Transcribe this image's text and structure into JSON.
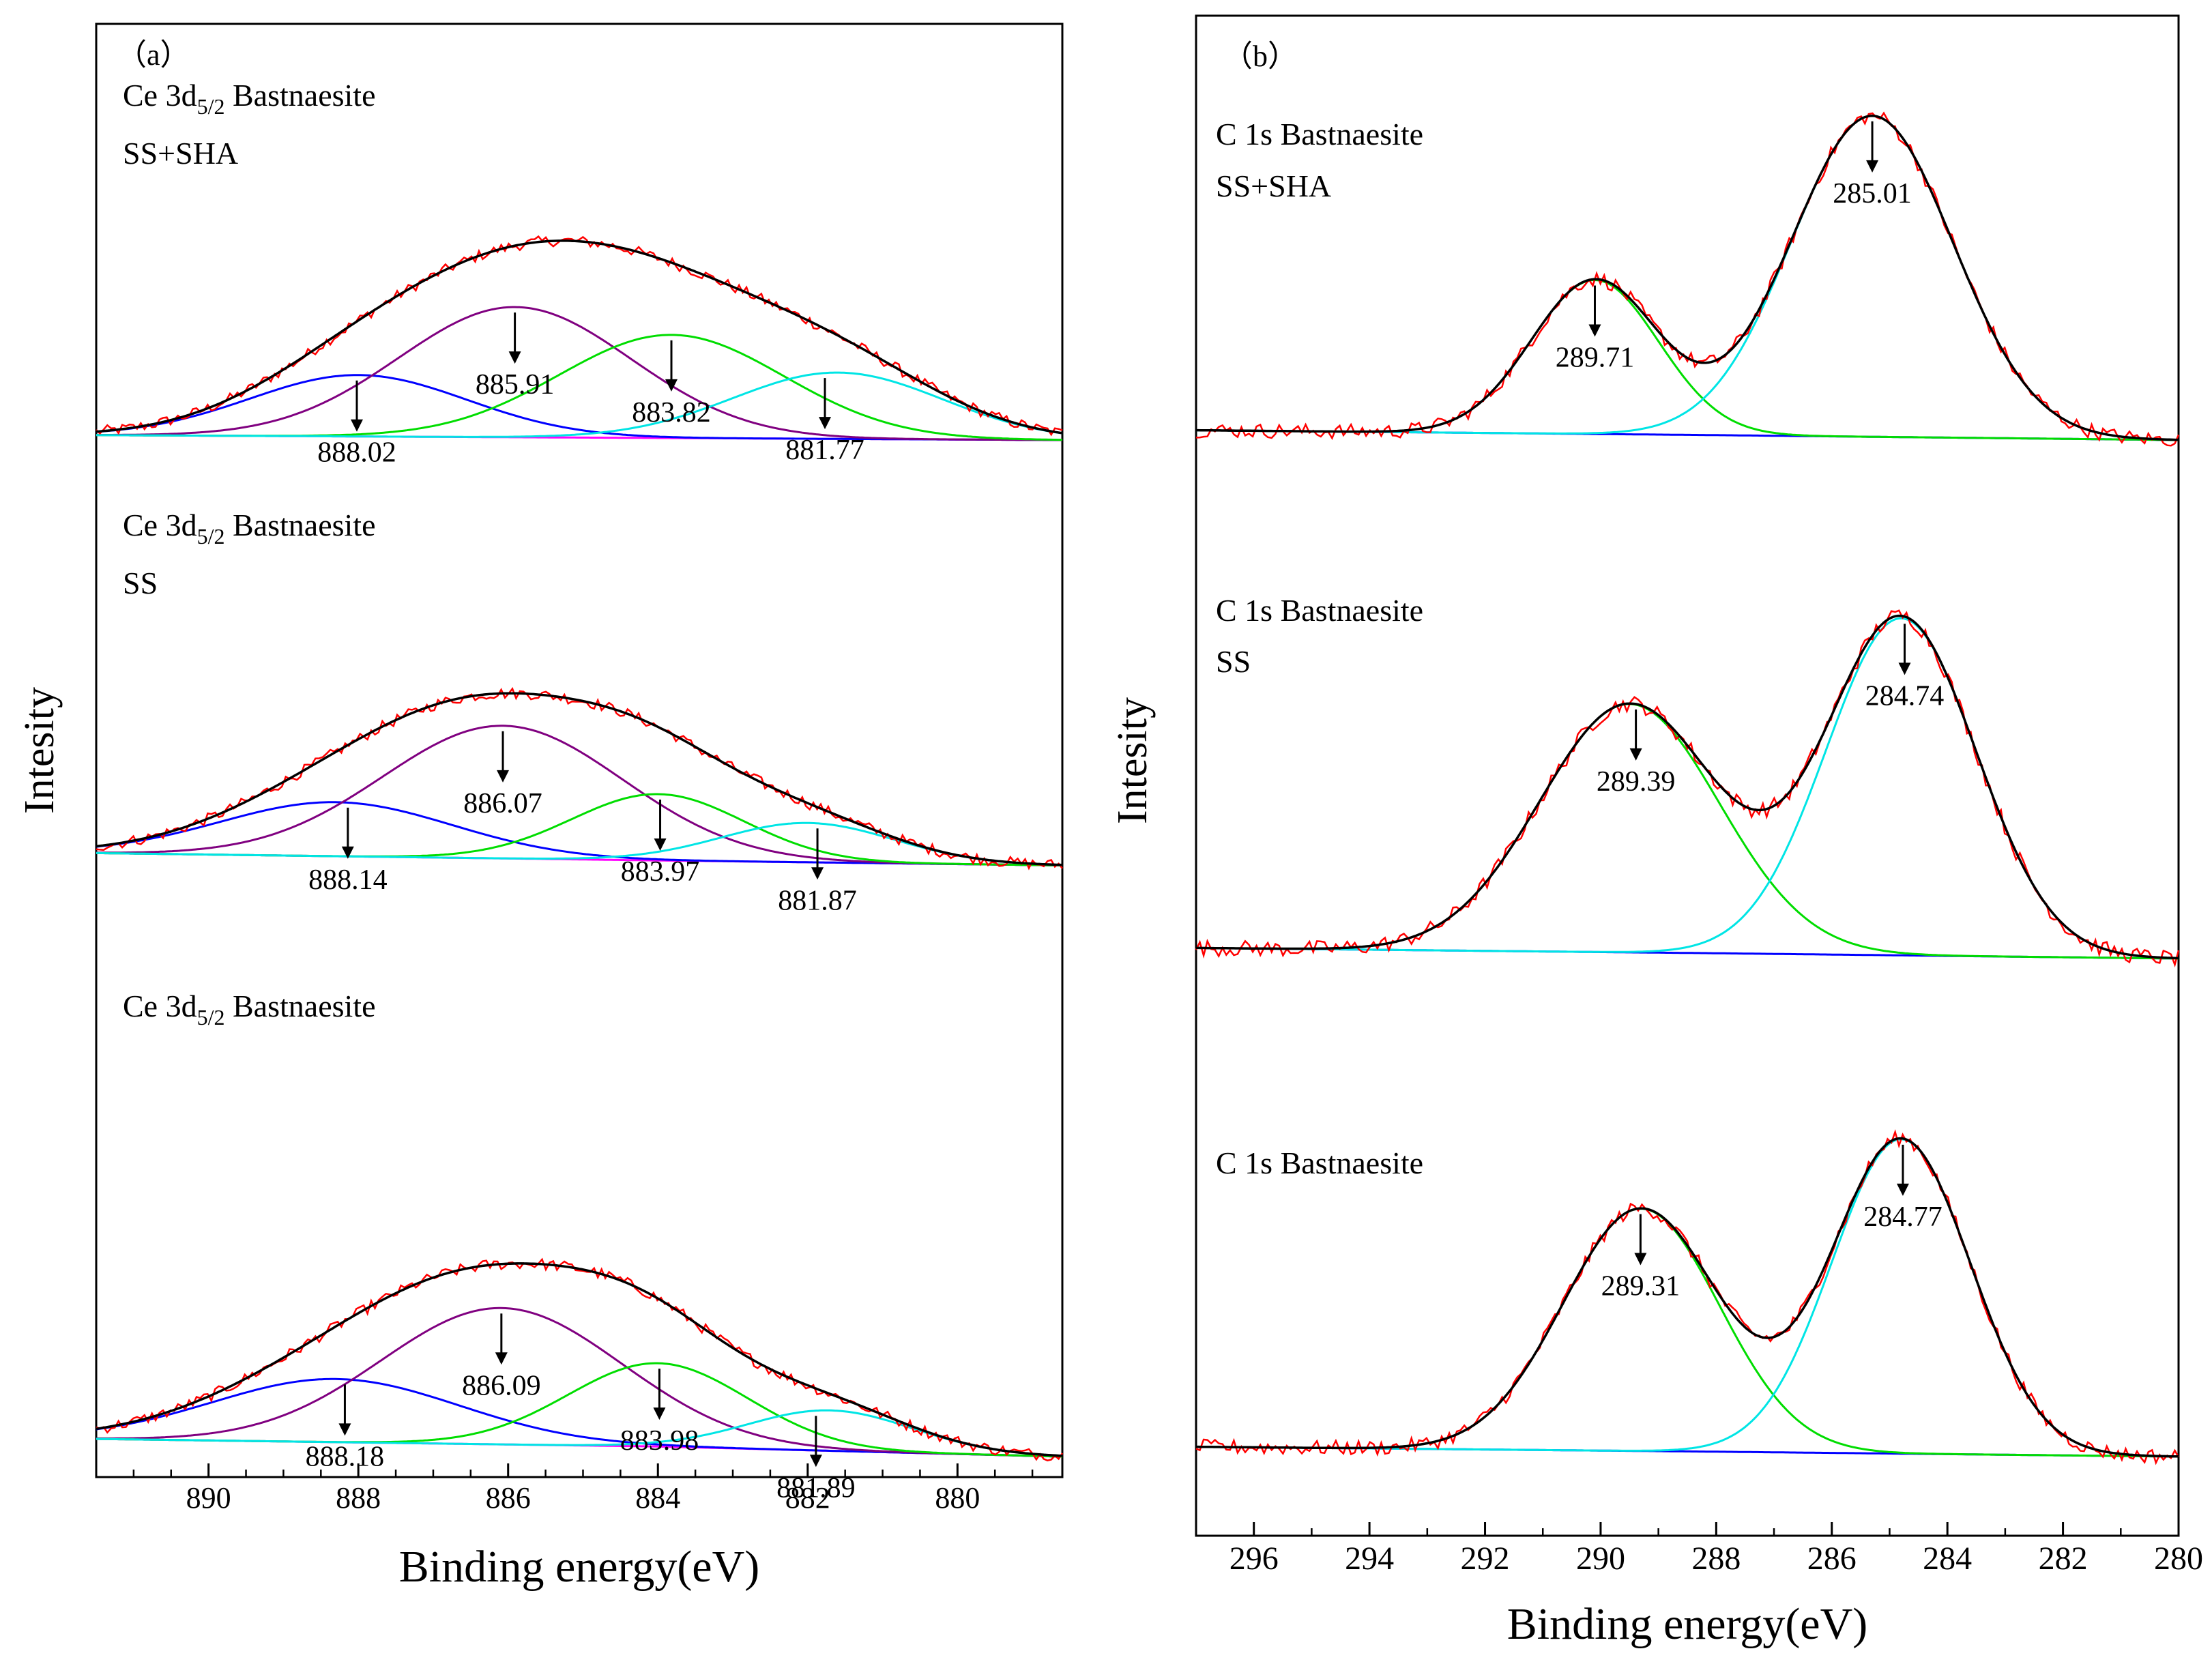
{
  "chart_data": [
    {
      "type": "line",
      "panel_label": "（a）",
      "xlabel": "Binding energy(eV)",
      "ylabel": "Intesity",
      "xlim": [
        891.5,
        878.6
      ],
      "x_reversed": true,
      "xticks": [
        890,
        888,
        886,
        884,
        882,
        880
      ],
      "minor_tick_step": 0.5,
      "grid": false,
      "colors": {
        "fit": "#000000",
        "data": "#ff0000",
        "c1": "#0000ff",
        "c2": "#800080",
        "c3": "#00dd00",
        "c4": "#00e5e5",
        "bg": "#ff00ff"
      },
      "subplots": [
        {
          "title_main": "Ce 3d",
          "title_sub": "5/2",
          "title_rest": " Bastnaesite",
          "title_line2": "SS+SHA",
          "baseline": [
            [
              891.5,
              0.02
            ],
            [
              885,
              0.01
            ],
            [
              878.6,
              0.0
            ]
          ],
          "components": [
            {
              "color": "c1",
              "center": 888.0,
              "height": 0.25,
              "sigma": 1.45
            },
            {
              "color": "c2",
              "center": 885.91,
              "height": 0.53,
              "sigma": 1.55
            },
            {
              "color": "c3",
              "center": 883.82,
              "height": 0.42,
              "sigma": 1.5
            },
            {
              "color": "c4",
              "center": 881.6,
              "height": 0.27,
              "sigma": 1.4
            }
          ],
          "annotations": [
            {
              "label": "888.02",
              "x": 888.02
            },
            {
              "label": "885.91",
              "x": 885.91
            },
            {
              "label": "883.82",
              "x": 883.82
            },
            {
              "label": "881.77",
              "x": 881.77
            }
          ]
        },
        {
          "title_main": "Ce 3d",
          "title_sub": "5/2",
          "title_rest": " Bastnaesite",
          "title_line2": "SS",
          "baseline": [
            [
              891.5,
              0.11
            ],
            [
              884,
              0.08
            ],
            [
              878.6,
              0.06
            ]
          ],
          "components": [
            {
              "color": "c1",
              "center": 888.3,
              "height": 0.22,
              "sigma": 1.55
            },
            {
              "color": "c2",
              "center": 886.07,
              "height": 0.54,
              "sigma": 1.6
            },
            {
              "color": "c3",
              "center": 884.0,
              "height": 0.27,
              "sigma": 1.15
            },
            {
              "color": "c4",
              "center": 882.0,
              "height": 0.16,
              "sigma": 1.15
            }
          ],
          "annotations": [
            {
              "label": "888.14",
              "x": 888.14
            },
            {
              "label": "886.07",
              "x": 886.07
            },
            {
              "label": "883.97",
              "x": 883.97
            },
            {
              "label": "881.87",
              "x": 881.87
            }
          ]
        },
        {
          "title_main": "Ce 3d",
          "title_sub": "5/2",
          "title_rest": " Bastnaesite",
          "title_line2": "",
          "baseline": [
            [
              891.5,
              0.07
            ],
            [
              884,
              0.04
            ],
            [
              878.6,
              0.0
            ]
          ],
          "components": [
            {
              "color": "c1",
              "center": 888.3,
              "height": 0.25,
              "sigma": 1.65
            },
            {
              "color": "c2",
              "center": 886.09,
              "height": 0.54,
              "sigma": 1.6
            },
            {
              "color": "c3",
              "center": 884.0,
              "height": 0.33,
              "sigma": 1.2
            },
            {
              "color": "c4",
              "center": 881.7,
              "height": 0.16,
              "sigma": 1.1
            }
          ],
          "annotations": [
            {
              "label": "888.18",
              "x": 888.18
            },
            {
              "label": "886.09",
              "x": 886.09
            },
            {
              "label": "883.98",
              "x": 883.98
            },
            {
              "label": "881.89",
              "x": 881.89
            }
          ]
        }
      ]
    },
    {
      "type": "line",
      "panel_label": "（b）",
      "xlabel": "Binding energy(eV)",
      "ylabel": "Intesity",
      "xlim": [
        297,
        280
      ],
      "x_reversed": true,
      "xticks": [
        296,
        294,
        292,
        290,
        288,
        286,
        284,
        282,
        280
      ],
      "minor_tick_step": 1,
      "grid": false,
      "colors": {
        "fit": "#000000",
        "data": "#ff0000",
        "c1": "#00dd00",
        "c2": "#00e5e5",
        "bg": "#0000ff"
      },
      "subplots": [
        {
          "title_main": "C 1s Bastnaesite",
          "title_line2": "SS+SHA",
          "baseline": [
            [
              297,
              0.03
            ],
            [
              288,
              0.015
            ],
            [
              280,
              0.0
            ]
          ],
          "components": [
            {
              "color": "c1",
              "center": 290.1,
              "height": 0.47,
              "sigma": 1.1
            },
            {
              "color": "c2",
              "center": 285.3,
              "height": 0.98,
              "sigma": 1.4
            }
          ],
          "annotations": [
            {
              "label": "289.71",
              "x": 290.1
            },
            {
              "label": "285.01",
              "x": 285.3
            }
          ]
        },
        {
          "title_main": "C 1s Bastnaesite",
          "title_line2": "SS",
          "baseline": [
            [
              297,
              0.03
            ],
            [
              288,
              0.015
            ],
            [
              280,
              0.0
            ]
          ],
          "components": [
            {
              "color": "c1",
              "center": 289.5,
              "height": 0.7,
              "sigma": 1.55
            },
            {
              "color": "c2",
              "center": 284.8,
              "height": 0.95,
              "sigma": 1.3
            }
          ],
          "annotations": [
            {
              "label": "289.39",
              "x": 289.39
            },
            {
              "label": "284.74",
              "x": 284.74
            }
          ]
        },
        {
          "title_main": "C 1s Bastnaesite",
          "title_line2": "",
          "baseline": [
            [
              297,
              0.03
            ],
            [
              288,
              0.015
            ],
            [
              280,
              0.0
            ]
          ],
          "components": [
            {
              "color": "c1",
              "center": 289.3,
              "height": 0.74,
              "sigma": 1.35
            },
            {
              "color": "c2",
              "center": 284.8,
              "height": 0.96,
              "sigma": 1.2
            }
          ],
          "annotations": [
            {
              "label": "289.31",
              "x": 289.31
            },
            {
              "label": "284.77",
              "x": 284.77
            }
          ]
        }
      ]
    }
  ]
}
